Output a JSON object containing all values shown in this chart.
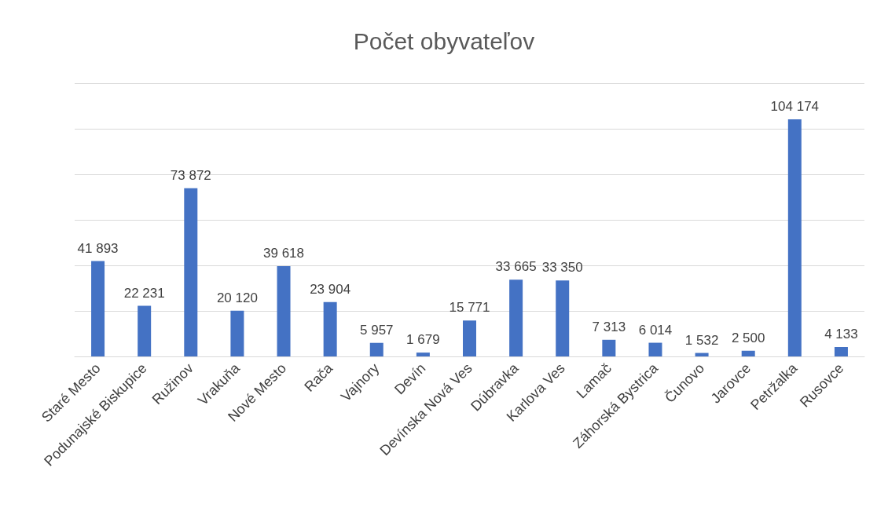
{
  "chart_data": {
    "type": "bar",
    "title": "Počet obyvateľov",
    "categories": [
      "Staré Mesto",
      "Podunajské Biskupice",
      "Ružinov",
      "Vrakuňa",
      "Nové Mesto",
      "Rača",
      "Vajnory",
      "Devín",
      "Devínska Nová Ves",
      "Dúbravka",
      "Karlova Ves",
      "Lamač",
      "Záhorská Bystrica",
      "Čunovo",
      "Jarovce",
      "Petržalka",
      "Rusovce"
    ],
    "values": [
      41893,
      22231,
      73872,
      20120,
      39618,
      23904,
      5957,
      1679,
      15771,
      33665,
      33350,
      7313,
      6014,
      1532,
      2500,
      104174,
      4133
    ],
    "value_labels": [
      "41 893",
      "22 231",
      "73 872",
      "20 120",
      "39 618",
      "23 904",
      "5 957",
      "1 679",
      "15 771",
      "33 665",
      "33 350",
      "7 313",
      "6 014",
      "1 532",
      "2 500",
      "104 174",
      "4 133"
    ],
    "color": "#4472c4",
    "ylim": [
      0,
      120000
    ],
    "yticks": [
      {
        "value": 0,
        "label": null
      },
      {
        "value": 20000,
        "label": null
      },
      {
        "value": 40000,
        "label": null
      },
      {
        "value": 60000,
        "label": null
      },
      {
        "value": 80000,
        "label": null
      },
      {
        "value": 100000,
        "label": null
      },
      {
        "value": 120000,
        "label": null
      }
    ],
    "tick_labels": "x",
    "grid": "y"
  }
}
